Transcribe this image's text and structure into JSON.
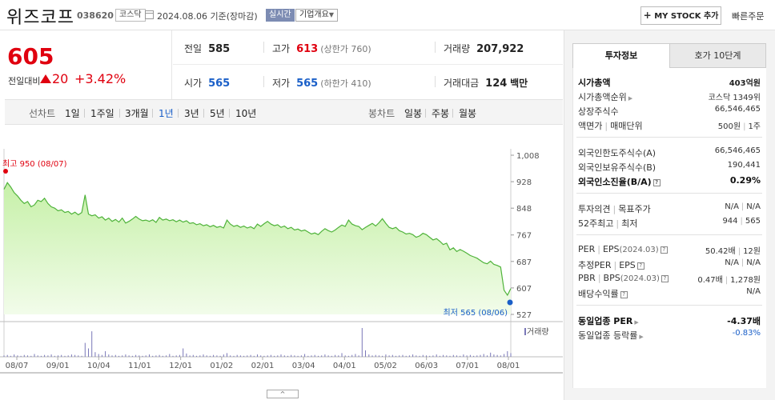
{
  "header": {
    "name": "위즈코프",
    "code": "038620",
    "market": "코스닥",
    "date": "2024.08.06",
    "basis": "기준(장마감)",
    "realtime": "실시간",
    "company_info": "기업개요",
    "my_stock": "MY STOCK 추가",
    "quick_order": "빠른주문"
  },
  "price": {
    "current": "605",
    "change_label": "전일대비",
    "change_amount": "20",
    "change_pct": "+3.42%",
    "direction": "up"
  },
  "summary": {
    "prev_label": "전일",
    "prev_value": "585",
    "high_label": "고가",
    "high_value": "613",
    "upper_limit": "(상한가 760)",
    "volume_label": "거래량",
    "volume_value": "207,922",
    "open_label": "시가",
    "open_value": "565",
    "low_label": "저가",
    "low_value": "565",
    "lower_limit": "(하한가 410)",
    "amount_label": "거래대금",
    "amount_value": "124",
    "amount_unit": "백만"
  },
  "periods": {
    "line_label": "선차트",
    "line_items": [
      "1일",
      "1주일",
      "3개월",
      "1년",
      "3년",
      "5년",
      "10년"
    ],
    "active": "1년",
    "candle_label": "봉차트",
    "candle_items": [
      "일봉",
      "주봉",
      "월봉"
    ]
  },
  "chart_data": {
    "type": "area",
    "x_ticks": [
      "08/07",
      "09/01",
      "10/04",
      "11/01",
      "12/01",
      "01/02",
      "02/01",
      "03/04",
      "04/01",
      "05/02",
      "06/03",
      "07/01",
      "08/01"
    ],
    "y_ticks": [
      "1,008",
      "928",
      "848",
      "767",
      "687",
      "607",
      "527"
    ],
    "ylim": [
      527,
      1008
    ],
    "values": [
      905,
      925,
      912,
      895,
      885,
      872,
      862,
      868,
      852,
      858,
      872,
      868,
      878,
      862,
      852,
      848,
      840,
      843,
      835,
      838,
      830,
      836,
      828,
      835,
      888,
      830,
      825,
      828,
      818,
      822,
      812,
      818,
      808,
      814,
      806,
      818,
      803,
      808,
      815,
      823,
      815,
      810,
      812,
      808,
      813,
      805,
      820,
      812,
      815,
      810,
      813,
      807,
      812,
      806,
      810,
      802,
      804,
      798,
      801,
      795,
      798,
      792,
      796,
      790,
      793,
      788,
      812,
      800,
      793,
      796,
      790,
      794,
      788,
      792,
      786,
      800,
      793,
      801,
      808,
      800,
      795,
      798,
      790,
      794,
      786,
      790,
      782,
      785,
      779,
      782,
      776,
      770,
      773,
      768,
      778,
      786,
      780,
      776,
      782,
      790,
      797,
      793,
      812,
      800,
      795,
      793,
      783,
      790,
      796,
      802,
      794,
      804,
      816,
      802,
      790,
      786,
      790,
      780,
      776,
      770,
      772,
      768,
      760,
      764,
      772,
      768,
      760,
      752,
      756,
      748,
      738,
      742,
      722,
      728,
      717,
      723,
      718,
      712,
      705,
      701,
      697,
      690,
      683,
      680,
      688,
      678,
      675,
      670,
      600,
      585,
      605
    ],
    "high_label": "최고 950 (08/07)",
    "low_label": "최저 565 (08/06)",
    "volume_label": "거래량",
    "volume": [
      3,
      4,
      2,
      5,
      3,
      2,
      4,
      3,
      2,
      6,
      3,
      2,
      4,
      3,
      5,
      2,
      3,
      4,
      2,
      3,
      5,
      4,
      3,
      2,
      30,
      18,
      55,
      10,
      6,
      4,
      12,
      5,
      3,
      4,
      2,
      3,
      5,
      3,
      2,
      4,
      3,
      2,
      3,
      5,
      2,
      3,
      4,
      2,
      3,
      6,
      2,
      3,
      4,
      18,
      7,
      3,
      4,
      2,
      3,
      5,
      3,
      2,
      4,
      3,
      2,
      5,
      8,
      3,
      2,
      4,
      3,
      2,
      3,
      4,
      2,
      5,
      3,
      2,
      3,
      4,
      2,
      3,
      5,
      3,
      2,
      4,
      3,
      2,
      3,
      6,
      2,
      3,
      4,
      2,
      3,
      5,
      3,
      2,
      4,
      3,
      8,
      3,
      2,
      4,
      6,
      3,
      62,
      14,
      5,
      3,
      4,
      3,
      2,
      5,
      3,
      4,
      2,
      3,
      4,
      2,
      3,
      5,
      3,
      2,
      4,
      3,
      2,
      3,
      5,
      2,
      4,
      3,
      2,
      4,
      3,
      2,
      5,
      3,
      4,
      2,
      3,
      4,
      6,
      3,
      9,
      5,
      4,
      3,
      6,
      12,
      8
    ],
    "colors": {
      "line": "#4fb33a",
      "fill_top": "#c6f0a8",
      "fill_bottom": "#f2fcea",
      "high": "#e0000f",
      "low": "#1a5fc8"
    }
  },
  "fold_icon": "^",
  "tabs": {
    "active": "투자정보",
    "inactive": "호가 10단계"
  },
  "info": {
    "market_cap_label": "시가총액",
    "market_cap_value": "403억원",
    "market_cap_rank_label": "시가총액순위",
    "market_cap_rank_value": "코스닥 1349위",
    "listed_shares_label": "상장주식수",
    "listed_shares_value": "66,546,465",
    "par_label": "액면가",
    "trade_unit_label": "매매단위",
    "par_value": "500원",
    "trade_unit_value": "1주",
    "foreign_limit_label": "외국인한도주식수(A)",
    "foreign_limit_value": "66,546,465",
    "foreign_hold_label": "외국인보유주식수(B)",
    "foreign_hold_value": "190,441",
    "foreign_ratio_label": "외국인소진율(B/A)",
    "foreign_ratio_value": "0.29%",
    "opinion_label": "투자의견",
    "target_label": "목표주가",
    "opinion_value": "N/A",
    "target_value": "N/A",
    "w52_high_label": "52주최고",
    "w52_low_label": "최저",
    "w52_high_value": "944",
    "w52_low_value": "565",
    "per_label": "PER",
    "eps_label": "EPS",
    "eps_period": "(2024.03)",
    "per_value": "50.42배",
    "eps_value": "12원",
    "est_per_label": "추정PER",
    "est_eps_label": "EPS",
    "est_per_value": "N/A",
    "est_eps_value": "N/A",
    "pbr_label": "PBR",
    "bps_label": "BPS",
    "bps_period": "(2024.03)",
    "pbr_value": "0.47배",
    "bps_value": "1,278원",
    "div_label": "배당수익률",
    "div_value": "N/A",
    "ind_per_label": "동일업종 PER",
    "ind_per_value": "-4.37배",
    "ind_chg_label": "동일업종 등락률",
    "ind_chg_value": "-0.83%"
  }
}
